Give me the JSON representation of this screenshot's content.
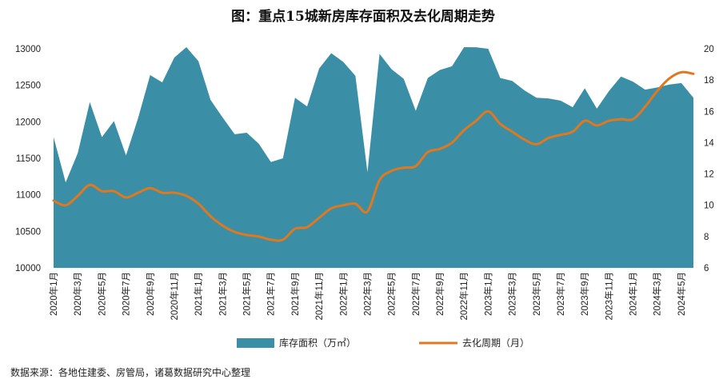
{
  "chart_data": {
    "type": "area+line",
    "title": "图：重点15城新房库存面积及去化周期走势",
    "categories": [
      "2020年1月",
      "2020年2月",
      "2020年3月",
      "2020年4月",
      "2020年5月",
      "2020年6月",
      "2020年7月",
      "2020年8月",
      "2020年9月",
      "2020年10月",
      "2020年11月",
      "2020年12月",
      "2021年1月",
      "2021年2月",
      "2021年3月",
      "2021年4月",
      "2021年5月",
      "2021年6月",
      "2021年7月",
      "2021年8月",
      "2021年9月",
      "2021年10月",
      "2021年11月",
      "2021年12月",
      "2022年1月",
      "2022年2月",
      "2022年3月",
      "2022年4月",
      "2022年5月",
      "2022年6月",
      "2022年7月",
      "2022年8月",
      "2022年9月",
      "2022年10月",
      "2022年11月",
      "2022年12月",
      "2023年1月",
      "2023年2月",
      "2023年3月",
      "2023年4月",
      "2023年5月",
      "2023年6月",
      "2023年7月",
      "2023年8月",
      "2023年9月",
      "2023年10月",
      "2023年11月",
      "2023年12月",
      "2024年1月",
      "2024年2月",
      "2024年3月",
      "2024年4月",
      "2024年5月",
      "2024年6月"
    ],
    "tick_labels": [
      "2020年1月",
      "2020年3月",
      "2020年5月",
      "2020年7月",
      "2020年9月",
      "2020年11月",
      "2021年1月",
      "2021年3月",
      "2021年5月",
      "2021年7月",
      "2021年9月",
      "2021年11月",
      "2022年1月",
      "2022年3月",
      "2022年5月",
      "2022年7月",
      "2022年9月",
      "2022年11月",
      "2023年1月",
      "2023年3月",
      "2023年5月",
      "2023年7月",
      "2023年9月",
      "2023年11月",
      "2024年1月",
      "2024年3月",
      "2024年5月"
    ],
    "series": [
      {
        "name": "库存面积（万㎡）",
        "type": "area",
        "axis": "left",
        "color": "#3A8FA6",
        "values": [
          11790,
          11170,
          11570,
          12270,
          11790,
          12010,
          11540,
          12050,
          12640,
          12540,
          12880,
          13030,
          12830,
          12300,
          12060,
          11830,
          11850,
          11700,
          11450,
          11500,
          12330,
          12210,
          12730,
          12940,
          12820,
          12630,
          11310,
          12930,
          12720,
          12590,
          12150,
          12600,
          12710,
          12760,
          13030,
          13020,
          13000,
          12600,
          12560,
          12430,
          12330,
          12320,
          12290,
          12200,
          12460,
          12180,
          12420,
          12620,
          12550,
          12440,
          12470,
          12510,
          12530,
          12330
        ]
      },
      {
        "name": "去化周期（月）",
        "type": "line",
        "axis": "right",
        "color": "#E07820",
        "values": [
          10.3,
          10.0,
          10.6,
          11.3,
          10.9,
          10.9,
          10.5,
          10.8,
          11.1,
          10.8,
          10.8,
          10.6,
          10.1,
          9.3,
          8.7,
          8.3,
          8.1,
          8.0,
          7.8,
          7.8,
          8.5,
          8.6,
          9.2,
          9.8,
          10.0,
          10.1,
          9.6,
          11.6,
          12.2,
          12.4,
          12.5,
          13.4,
          13.6,
          14.0,
          14.8,
          15.4,
          16.0,
          15.2,
          14.7,
          14.2,
          13.9,
          14.3,
          14.5,
          14.7,
          15.4,
          15.1,
          15.4,
          15.5,
          15.5,
          16.3,
          17.3,
          18.1,
          18.5,
          18.4
        ]
      }
    ],
    "y_left": {
      "min": 10000,
      "max": 13000,
      "ticks": [
        "10000",
        "10500",
        "11000",
        "11500",
        "12000",
        "12500",
        "13000"
      ]
    },
    "y_right": {
      "min": 6,
      "max": 20,
      "ticks": [
        "6",
        "8",
        "10",
        "12",
        "14",
        "16",
        "18",
        "20"
      ]
    },
    "legend": {
      "position": "bottom",
      "items": [
        "库存面积（万㎡）",
        "去化周期（月）"
      ]
    },
    "grid": false
  },
  "source_note": "数据来源：各地住建委、房管局，诸葛数据研究中心整理"
}
